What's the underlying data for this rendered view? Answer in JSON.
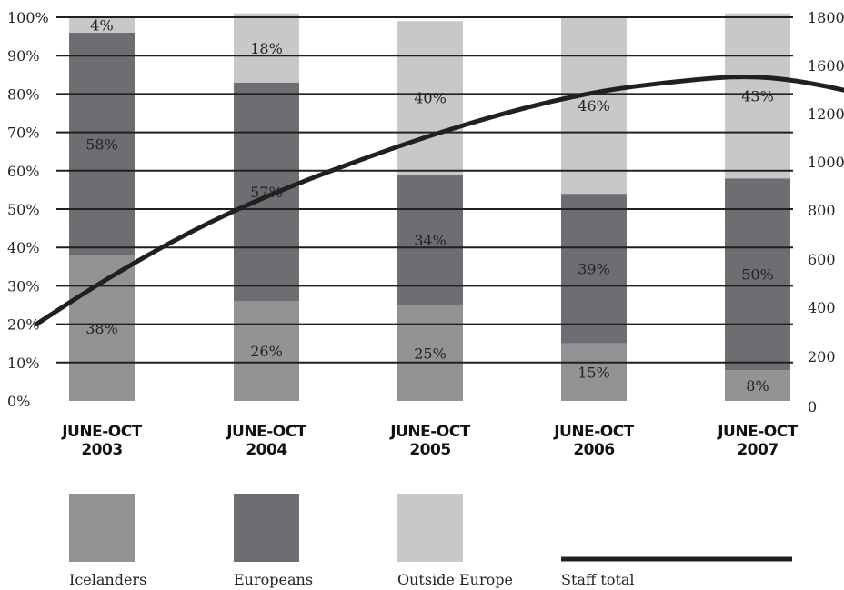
{
  "chart_data": {
    "type": "bar",
    "stacked": true,
    "categories": [
      [
        "JUNE-OCT",
        "2003"
      ],
      [
        "JUNE-OCT",
        "2004"
      ],
      [
        "JUNE-OCT",
        "2005"
      ],
      [
        "JUNE-OCT",
        "2006"
      ],
      [
        "JUNE-OCT",
        "2007"
      ]
    ],
    "series": [
      {
        "name": "Icelanders",
        "values": [
          38,
          26,
          25,
          15,
          8
        ],
        "labels": [
          "38%",
          "26%",
          "25%",
          "15%",
          "8%"
        ],
        "color": "#939395"
      },
      {
        "name": "Europeans",
        "values": [
          58,
          57,
          34,
          39,
          50
        ],
        "labels": [
          "58%",
          "57%",
          "34%",
          "39%",
          "50%"
        ],
        "color": "#6d6e71"
      },
      {
        "name": "Outside Europe",
        "values": [
          4,
          18,
          40,
          46,
          43
        ],
        "labels": [
          "4%",
          "18%",
          "40%",
          "46%",
          "43%"
        ],
        "color": "#c8c8ca"
      }
    ],
    "line_series": {
      "name": "Staff total",
      "axis": "right",
      "color": "#231f20",
      "points": [
        [
          2002.6,
          360
        ],
        [
          2003,
          560
        ],
        [
          2003.5,
          780
        ],
        [
          2004,
          960
        ],
        [
          2004.5,
          1110
        ],
        [
          2005,
          1245
        ],
        [
          2005.5,
          1360
        ],
        [
          2006,
          1450
        ],
        [
          2006.5,
          1500
        ],
        [
          2007,
          1530
        ],
        [
          2007.5,
          1470
        ],
        [
          2008,
          1360
        ],
        [
          2008.5,
          1200
        ],
        [
          2008.85,
          1050
        ]
      ]
    },
    "y_left": {
      "ylim": [
        0,
        100
      ],
      "ticks": [
        "0%",
        "10%",
        "20%",
        "30%",
        "40%",
        "50%",
        "60%",
        "70%",
        "80%",
        "90%",
        "100%"
      ]
    },
    "y_right": {
      "ylim": [
        0,
        1800
      ],
      "ticks": [
        "0",
        "200",
        "400",
        "600",
        "800",
        "1000",
        "1200",
        "1600",
        "1800"
      ]
    },
    "gridlines": true,
    "legend": {
      "placement": "bottom",
      "items": [
        "Icelanders",
        "Europeans",
        "Outside Europe",
        "Staff total"
      ]
    }
  }
}
